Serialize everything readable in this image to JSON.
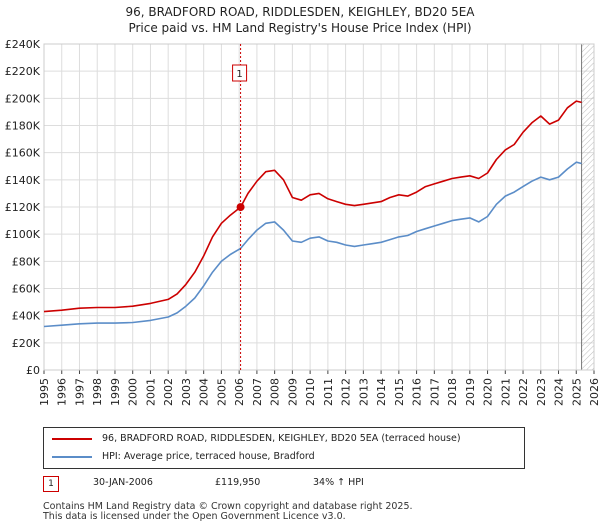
{
  "chart_data": {
    "type": "line",
    "title_line1": "96, BRADFORD ROAD, RIDDLESDEN, KEIGHLEY, BD20 5EA",
    "title_line2": "Price paid vs. HM Land Registry's House Price Index (HPI)",
    "xlim": [
      1995,
      2026
    ],
    "ylim": [
      0,
      240000
    ],
    "y_ticks": [
      0,
      20000,
      40000,
      60000,
      80000,
      100000,
      120000,
      140000,
      160000,
      180000,
      200000,
      220000,
      240000
    ],
    "y_tick_labels": [
      "£0",
      "£20K",
      "£40K",
      "£60K",
      "£80K",
      "£100K",
      "£120K",
      "£140K",
      "£160K",
      "£180K",
      "£200K",
      "£220K",
      "£240K"
    ],
    "x_ticks": [
      1995,
      1996,
      1997,
      1998,
      1999,
      2000,
      2001,
      2002,
      2003,
      2004,
      2005,
      2006,
      2007,
      2008,
      2009,
      2010,
      2011,
      2012,
      2013,
      2014,
      2015,
      2016,
      2017,
      2018,
      2019,
      2020,
      2021,
      2022,
      2023,
      2024,
      2025,
      2026
    ],
    "x_tick_labels": [
      "1995",
      "1996",
      "1997",
      "1998",
      "1999",
      "2000",
      "2001",
      "2002",
      "2003",
      "2004",
      "2005",
      "2006",
      "2007",
      "2008",
      "2009",
      "2010",
      "2011",
      "2012",
      "2013",
      "2014",
      "2015",
      "2016",
      "2017",
      "2018",
      "2019",
      "2020",
      "2021",
      "2022",
      "2023",
      "2024",
      "2025",
      "2026"
    ],
    "series": [
      {
        "name": "96, BRADFORD ROAD, RIDDLESDEN, KEIGHLEY, BD20 5EA (terraced house)",
        "color": "#cc0000",
        "x": [
          1995.0,
          1996.0,
          1997.0,
          1998.0,
          1999.0,
          2000.0,
          2001.0,
          2002.0,
          2002.5,
          2003.0,
          2003.5,
          2004.0,
          2004.5,
          2005.0,
          2005.5,
          2006.08,
          2006.5,
          2007.0,
          2007.5,
          2008.0,
          2008.5,
          2009.0,
          2009.5,
          2010.0,
          2010.5,
          2011.0,
          2011.5,
          2012.0,
          2012.5,
          2013.0,
          2013.5,
          2014.0,
          2014.5,
          2015.0,
          2015.5,
          2016.0,
          2016.5,
          2017.0,
          2017.5,
          2018.0,
          2018.5,
          2019.0,
          2019.5,
          2020.0,
          2020.5,
          2021.0,
          2021.5,
          2022.0,
          2022.5,
          2023.0,
          2023.5,
          2024.0,
          2024.5,
          2025.0,
          2025.3
        ],
        "y": [
          43000,
          44000,
          45500,
          46000,
          46000,
          47000,
          49000,
          52000,
          56000,
          63000,
          72000,
          84000,
          98000,
          108000,
          114000,
          119950,
          130000,
          139000,
          146000,
          147000,
          140000,
          127000,
          125000,
          129000,
          130000,
          126000,
          124000,
          122000,
          121000,
          122000,
          123000,
          124000,
          127000,
          129000,
          128000,
          131000,
          135000,
          137000,
          139000,
          141000,
          142000,
          143000,
          141000,
          145000,
          155000,
          162000,
          166000,
          175000,
          182000,
          187000,
          181000,
          184000,
          193000,
          198000,
          197000
        ]
      },
      {
        "name": "HPI: Average price, terraced house, Bradford",
        "color": "#5b8dc8",
        "x": [
          1995.0,
          1996.0,
          1997.0,
          1998.0,
          1999.0,
          2000.0,
          2001.0,
          2002.0,
          2002.5,
          2003.0,
          2003.5,
          2004.0,
          2004.5,
          2005.0,
          2005.5,
          2006.08,
          2006.5,
          2007.0,
          2007.5,
          2008.0,
          2008.5,
          2009.0,
          2009.5,
          2010.0,
          2010.5,
          2011.0,
          2011.5,
          2012.0,
          2012.5,
          2013.0,
          2013.5,
          2014.0,
          2014.5,
          2015.0,
          2015.5,
          2016.0,
          2016.5,
          2017.0,
          2017.5,
          2018.0,
          2018.5,
          2019.0,
          2019.5,
          2020.0,
          2020.5,
          2021.0,
          2021.5,
          2022.0,
          2022.5,
          2023.0,
          2023.5,
          2024.0,
          2024.5,
          2025.0,
          2025.3
        ],
        "y": [
          32000,
          33000,
          34000,
          34500,
          34500,
          35000,
          36500,
          39000,
          42000,
          47000,
          53000,
          62000,
          72000,
          80000,
          85000,
          89500,
          96000,
          103000,
          108000,
          109000,
          103000,
          95000,
          94000,
          97000,
          98000,
          95000,
          94000,
          92000,
          91000,
          92000,
          93000,
          94000,
          96000,
          98000,
          99000,
          102000,
          104000,
          106000,
          108000,
          110000,
          111000,
          112000,
          109000,
          113000,
          122000,
          128000,
          131000,
          135000,
          139000,
          142000,
          140000,
          142000,
          148000,
          153000,
          152000
        ]
      }
    ],
    "sale_marker": {
      "label": "1",
      "x": 2006.08,
      "y": 119950
    },
    "future_hatch_start": 2025.3
  },
  "legend": {
    "property_label": "96, BRADFORD ROAD, RIDDLESDEN, KEIGHLEY, BD20 5EA (terraced house)",
    "hpi_label": "HPI: Average price, terraced house, Bradford",
    "property_color": "#cc0000",
    "hpi_color": "#5b8dc8"
  },
  "sale": {
    "badge": "1",
    "date": "30-JAN-2006",
    "price": "£119,950",
    "hpi_change": "34% ↑ HPI"
  },
  "footer": {
    "line1": "Contains HM Land Registry data © Crown copyright and database right 2025.",
    "line2": "This data is licensed under the Open Government Licence v3.0."
  }
}
